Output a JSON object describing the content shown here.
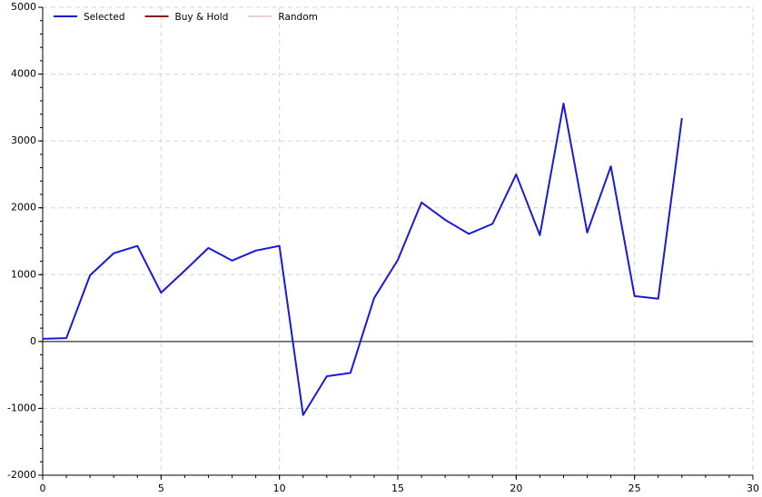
{
  "chart_data": {
    "type": "line",
    "x": [
      0,
      1,
      2,
      3,
      4,
      5,
      6,
      7,
      8,
      9,
      10,
      11,
      12,
      13,
      14,
      15,
      16,
      17,
      18,
      19,
      20,
      21,
      22,
      23,
      24,
      25,
      26,
      27
    ],
    "series": [
      {
        "name": "Selected",
        "color": "#1a1ad6",
        "values": [
          40,
          50,
          990,
          1320,
          1430,
          730,
          1060,
          1400,
          1210,
          1360,
          1430,
          -1100,
          -520,
          -470,
          650,
          1220,
          2080,
          1820,
          1610,
          1760,
          2500,
          1590,
          3560,
          1630,
          2620,
          680,
          640,
          3340
        ]
      },
      {
        "name": "Buy & Hold",
        "color": "#8b1a1a",
        "values": [
          null,
          null,
          null,
          null,
          null,
          null,
          null,
          null,
          null,
          null,
          null,
          null,
          null,
          null,
          null,
          null,
          null,
          null,
          null,
          null,
          null,
          null,
          null,
          null,
          null,
          null,
          null,
          null
        ]
      },
      {
        "name": "Random",
        "color": "#e8d0d0",
        "values": [
          null,
          null,
          null,
          null,
          null,
          null,
          null,
          null,
          null,
          null,
          null,
          null,
          null,
          null,
          null,
          null,
          null,
          null,
          null,
          null,
          null,
          null,
          null,
          null,
          null,
          null,
          null,
          null
        ]
      }
    ],
    "xlim": [
      0,
      30
    ],
    "xticks": [
      0,
      5,
      10,
      15,
      20,
      25,
      30
    ],
    "ylim": [
      -2000,
      5000
    ],
    "yticks": [
      -2000,
      -1000,
      0,
      1000,
      2000,
      3000,
      4000,
      5000
    ],
    "grid": true,
    "legend": "top-left"
  }
}
